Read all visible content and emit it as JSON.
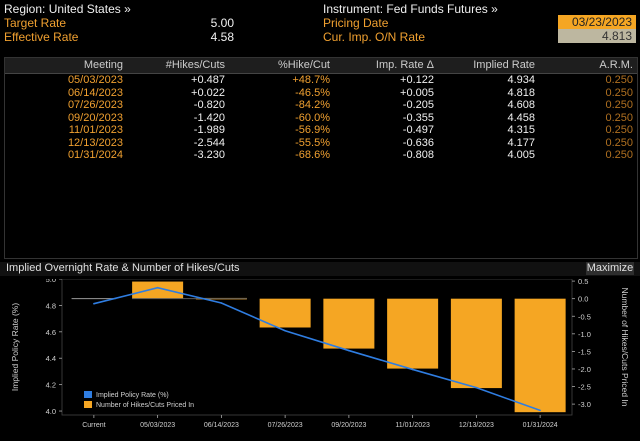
{
  "header": {
    "region_label": "Region: United States »",
    "instrument_label": "Instrument: Fed Funds Futures »",
    "target_rate_label": "Target Rate",
    "target_rate_value": "5.00",
    "effective_rate_label": "Effective Rate",
    "effective_rate_value": "4.58",
    "pricing_date_label": "Pricing Date",
    "pricing_date_value": "03/23/2023",
    "cur_imp_label": "Cur. Imp. O/N Rate",
    "cur_imp_value": "4.813"
  },
  "table": {
    "columns": [
      "Meeting",
      "#Hikes/Cuts",
      "%Hike/Cut",
      "Imp. Rate Δ",
      "Implied Rate",
      "A.R.M."
    ],
    "rows": [
      {
        "meeting": "05/03/2023",
        "hikes": "+0.487",
        "pct": "+48.7%",
        "delta": "+0.122",
        "implied": "4.934",
        "arm": "0.250"
      },
      {
        "meeting": "06/14/2023",
        "hikes": "+0.022",
        "pct": "-46.5%",
        "delta": "+0.005",
        "implied": "4.818",
        "arm": "0.250"
      },
      {
        "meeting": "07/26/2023",
        "hikes": "-0.820",
        "pct": "-84.2%",
        "delta": "-0.205",
        "implied": "4.608",
        "arm": "0.250"
      },
      {
        "meeting": "09/20/2023",
        "hikes": "-1.420",
        "pct": "-60.0%",
        "delta": "-0.355",
        "implied": "4.458",
        "arm": "0.250"
      },
      {
        "meeting": "11/01/2023",
        "hikes": "-1.989",
        "pct": "-56.9%",
        "delta": "-0.497",
        "implied": "4.315",
        "arm": "0.250"
      },
      {
        "meeting": "12/13/2023",
        "hikes": "-2.544",
        "pct": "-55.5%",
        "delta": "-0.636",
        "implied": "4.177",
        "arm": "0.250"
      },
      {
        "meeting": "01/31/2024",
        "hikes": "-3.230",
        "pct": "-68.6%",
        "delta": "-0.808",
        "implied": "4.005",
        "arm": "0.250"
      }
    ]
  },
  "chart_panel": {
    "title": "Implied Overnight Rate & Number of Hikes/Cuts",
    "maximize_label": "Maximize"
  },
  "chart_data": {
    "type": "bar",
    "title": "Implied Overnight Rate & Number of Hikes/Cuts",
    "categories": [
      "Current",
      "05/03/2023",
      "06/14/2023",
      "07/26/2023",
      "09/20/2023",
      "11/01/2023",
      "12/13/2023",
      "01/31/2024"
    ],
    "series": [
      {
        "name": "Implied Policy Rate (%)",
        "type": "line",
        "axis": "left",
        "color": "#2f7de1",
        "values": [
          4.813,
          4.934,
          4.818,
          4.608,
          4.458,
          4.315,
          4.177,
          4.005
        ]
      },
      {
        "name": "Number of Hikes/Cuts Priced In",
        "type": "bar",
        "axis": "right",
        "color": "#f5a623",
        "values": [
          0,
          0.487,
          0.022,
          -0.82,
          -1.42,
          -1.989,
          -2.544,
          -3.23
        ]
      }
    ],
    "ylabel_left": "Implied Policy Rate (%)",
    "ylabel_right": "Number of Hikes/Cuts Priced In",
    "ylim_left": [
      3.97,
      5.0
    ],
    "yticks_left": [
      4.0,
      4.2,
      4.4,
      4.6,
      4.8,
      5.0
    ],
    "ytick_labels_left": [
      "4.0",
      "4.2",
      "4.4",
      "4.6",
      "4.8",
      "5.0"
    ],
    "ylim_right": [
      -3.31,
      0.56
    ],
    "yticks_right": [
      0.5,
      0,
      -0.5,
      -1.0,
      -1.5,
      -2.0,
      -2.5,
      -3.0
    ],
    "ytick_labels_right": [
      "0.5",
      "0.0",
      "-0.5",
      "-1.0",
      "-1.5",
      "-2.0",
      "-2.5",
      "-3.0"
    ],
    "legend_position": "bottom-left"
  }
}
